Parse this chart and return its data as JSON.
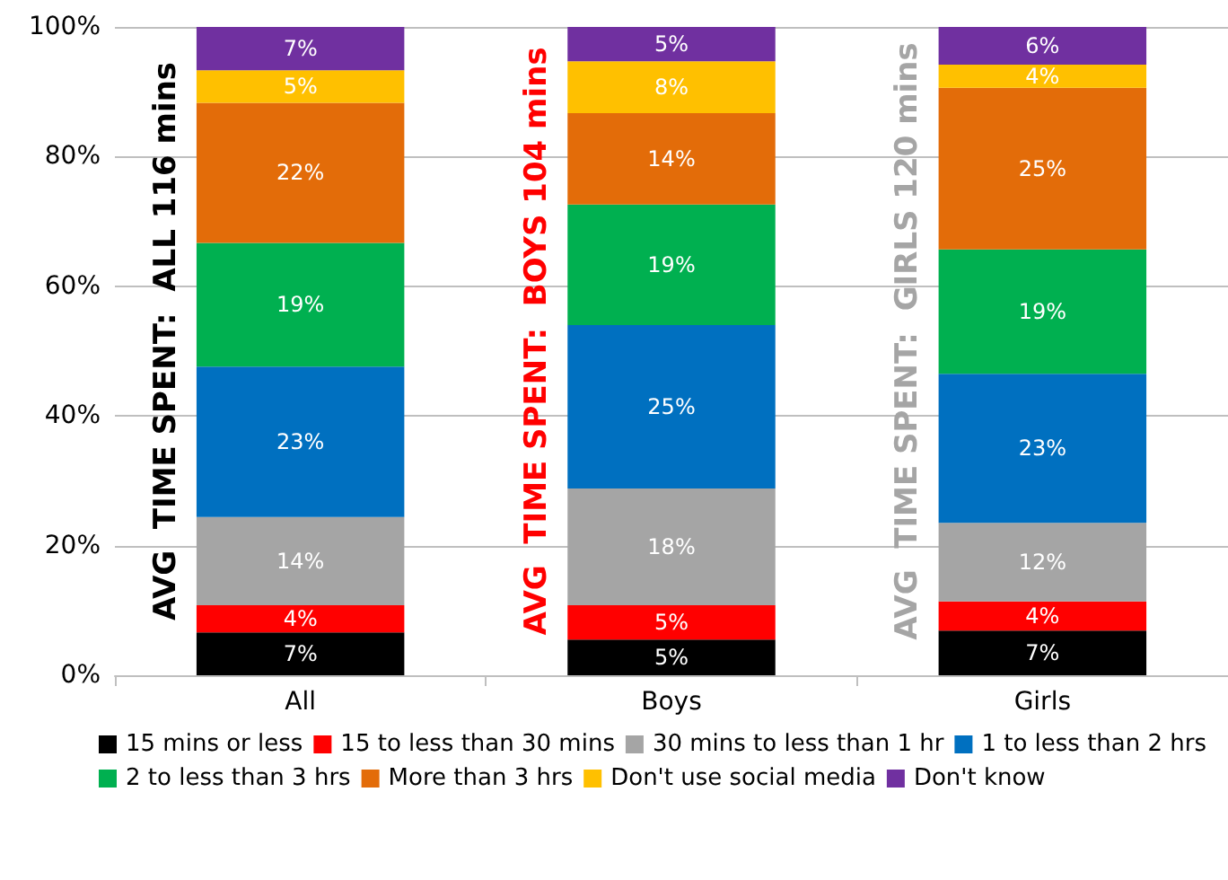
{
  "chart_data": {
    "type": "bar",
    "stacked": true,
    "categories": [
      "All",
      "Boys",
      "Girls"
    ],
    "series": [
      {
        "name": "15 mins or less",
        "color": "#000000",
        "values": [
          6.6,
          5.5,
          6.9
        ],
        "value_labels": [
          "7%",
          "5%",
          "7%"
        ]
      },
      {
        "name": "15 to less than 30 mins",
        "color": "#ff0000",
        "values": [
          4.2,
          5.3,
          4.5
        ],
        "value_labels": [
          "4%",
          "5%",
          "4%"
        ]
      },
      {
        "name": "30 mins to less than 1 hr",
        "color": "#a5a5a5",
        "values": [
          13.6,
          18.0,
          12.1
        ],
        "value_labels": [
          "14%",
          "18%",
          "12%"
        ]
      },
      {
        "name": "1 to less than 2 hrs",
        "color": "#0070c0",
        "values": [
          23.2,
          25.2,
          23.0
        ],
        "value_labels": [
          "23%",
          "25%",
          "23%"
        ]
      },
      {
        "name": "2 to less than 3 hrs",
        "color": "#00b050",
        "values": [
          19.1,
          18.6,
          19.2
        ],
        "value_labels": [
          "19%",
          "19%",
          "19%"
        ]
      },
      {
        "name": "More than 3 hrs",
        "color": "#e36c09",
        "values": [
          21.6,
          14.1,
          24.9
        ],
        "value_labels": [
          "22%",
          "14%",
          "25%"
        ]
      },
      {
        "name": "Don't use social media",
        "color": "#ffc000",
        "values": [
          5.0,
          8.0,
          3.6
        ],
        "value_labels": [
          "5%",
          "8%",
          "4%"
        ]
      },
      {
        "name": "Don't know",
        "color": "#7030a0",
        "values": [
          6.7,
          5.3,
          5.8
        ],
        "value_labels": [
          "7%",
          "5%",
          "6%"
        ]
      }
    ],
    "ylim": [
      0,
      100
    ],
    "yticks": [
      {
        "value": 0,
        "label": "0%"
      },
      {
        "value": 20,
        "label": "20%"
      },
      {
        "value": 40,
        "label": "40%"
      },
      {
        "value": 60,
        "label": "60%"
      },
      {
        "value": 80,
        "label": "80%"
      },
      {
        "value": 100,
        "label": "100%"
      }
    ],
    "grid": "y",
    "legend": "bottom",
    "annotations": [
      "AVG  TIME SPENT:  ALL 116 mins",
      "AVG  TIME SPENT:  BOYS 104 mins",
      "AVG  TIME SPENT:  GIRLS 120 mins"
    ]
  }
}
